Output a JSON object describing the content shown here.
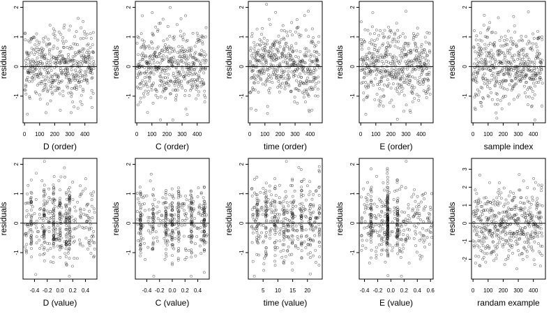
{
  "chart_data": [
    {
      "type": "scatter",
      "xlabel": "D (order)",
      "ylabel": "residuals",
      "xlim": [
        -10,
        480
      ],
      "ylim": [
        -1.9,
        2.2
      ],
      "xticks": [
        0,
        100,
        200,
        300,
        400
      ],
      "xtick_labels": [
        "0",
        "100",
        "200",
        "300",
        "400"
      ],
      "yticks": [
        -1,
        0,
        1,
        2
      ],
      "ytick_labels": [
        "-1",
        "0",
        "1",
        "2"
      ],
      "hline": 0,
      "points": {
        "n": 460,
        "x_mode": "index",
        "x_min": 1,
        "x_max": 460,
        "y_mean": 0.05,
        "y_sd": 0.62,
        "y_clip": [
          -1.8,
          2.1
        ]
      }
    },
    {
      "type": "scatter",
      "xlabel": "C (order)",
      "ylabel": "residuals",
      "xlim": [
        -10,
        480
      ],
      "ylim": [
        -1.9,
        2.2
      ],
      "xticks": [
        0,
        100,
        200,
        300,
        400
      ],
      "xtick_labels": [
        "0",
        "100",
        "200",
        "300",
        "400"
      ],
      "yticks": [
        -1,
        0,
        1,
        2
      ],
      "ytick_labels": [
        "-1",
        "0",
        "1",
        "2"
      ],
      "hline": 0,
      "points": {
        "n": 460,
        "x_mode": "index",
        "x_min": 1,
        "x_max": 460,
        "y_mean": 0.05,
        "y_sd": 0.62,
        "y_clip": [
          -1.8,
          2.1
        ]
      }
    },
    {
      "type": "scatter",
      "xlabel": "time (order)",
      "ylabel": "residuals",
      "xlim": [
        -10,
        480
      ],
      "ylim": [
        -1.9,
        2.2
      ],
      "xticks": [
        0,
        100,
        200,
        300,
        400
      ],
      "xtick_labels": [
        "0",
        "100",
        "200",
        "300",
        "400"
      ],
      "yticks": [
        -1,
        0,
        1,
        2
      ],
      "ytick_labels": [
        "-1",
        "0",
        "1",
        "2"
      ],
      "hline": 0,
      "points": {
        "n": 460,
        "x_mode": "index",
        "x_min": 1,
        "x_max": 460,
        "y_mean": 0.05,
        "y_sd": 0.62,
        "y_clip": [
          -1.8,
          2.1
        ]
      }
    },
    {
      "type": "scatter",
      "xlabel": "E (order)",
      "ylabel": "residuals",
      "xlim": [
        -10,
        480
      ],
      "ylim": [
        -1.9,
        2.2
      ],
      "xticks": [
        0,
        100,
        200,
        300,
        400
      ],
      "xtick_labels": [
        "0",
        "100",
        "200",
        "300",
        "400"
      ],
      "yticks": [
        -1,
        0,
        1,
        2
      ],
      "ytick_labels": [
        "-1",
        "0",
        "1",
        "2"
      ],
      "hline": 0,
      "points": {
        "n": 460,
        "x_mode": "index",
        "x_min": 1,
        "x_max": 460,
        "y_mean": 0.05,
        "y_sd": 0.62,
        "y_clip": [
          -1.8,
          2.1
        ]
      }
    },
    {
      "type": "scatter",
      "xlabel": "sample index",
      "ylabel": "residuals",
      "xlim": [
        -10,
        480
      ],
      "ylim": [
        -1.9,
        2.2
      ],
      "xticks": [
        0,
        100,
        200,
        300,
        400
      ],
      "xtick_labels": [
        "0",
        "100",
        "200",
        "300",
        "400"
      ],
      "yticks": [
        -1,
        0,
        1,
        2
      ],
      "ytick_labels": [
        "-1",
        "0",
        "1",
        "2"
      ],
      "hline": 0,
      "points": {
        "n": 460,
        "x_mode": "index",
        "x_min": 1,
        "x_max": 460,
        "y_mean": 0.05,
        "y_sd": 0.62,
        "y_clip": [
          -1.8,
          2.1
        ]
      }
    },
    {
      "type": "scatter",
      "xlabel": "D (value)",
      "ylabel": "residuals",
      "xlim": [
        -0.58,
        0.58
      ],
      "ylim": [
        -1.9,
        2.2
      ],
      "xticks": [
        -0.4,
        -0.2,
        0.0,
        0.2,
        0.4
      ],
      "xtick_labels": [
        "-0.4",
        "-0.2",
        "0.0",
        "0.2",
        "0.4"
      ],
      "yticks": [
        -1,
        0,
        1,
        2
      ],
      "ytick_labels": [
        "-1",
        "0",
        "1",
        "2"
      ],
      "hline": 0,
      "points": {
        "n": 460,
        "x_mode": "mixed",
        "x_min": -0.55,
        "x_max": 0.55,
        "clusters": [
          -0.45,
          -0.25,
          -0.1,
          0,
          0.1,
          0.15
        ],
        "cluster_share": 0.45,
        "y_mean": 0.05,
        "y_sd": 0.62,
        "y_clip": [
          -1.8,
          2.1
        ]
      }
    },
    {
      "type": "scatter",
      "xlabel": "C (value)",
      "ylabel": "residuals",
      "xlim": [
        -0.58,
        0.58
      ],
      "ylim": [
        -1.9,
        2.2
      ],
      "xticks": [
        -0.4,
        -0.2,
        0.0,
        0.2,
        0.4
      ],
      "xtick_labels": [
        "-0.4",
        "-0.2",
        "0.0",
        "0.2",
        "0.4"
      ],
      "yticks": [
        -1,
        0,
        1,
        2
      ],
      "ytick_labels": [
        "-1",
        "0",
        "1",
        "2"
      ],
      "hline": 0,
      "points": {
        "n": 460,
        "x_mode": "mixed",
        "x_min": -0.55,
        "x_max": 0.55,
        "clusters": [
          -0.5,
          -0.3,
          -0.1,
          0,
          0.1,
          0.3,
          0.5
        ],
        "cluster_share": 0.6,
        "y_mean": 0.05,
        "y_sd": 0.62,
        "y_clip": [
          -1.8,
          2.1
        ]
      }
    },
    {
      "type": "scatter",
      "xlabel": "time (value)",
      "ylabel": "residuals",
      "xlim": [
        0,
        25
      ],
      "ylim": [
        -1.9,
        2.2
      ],
      "xticks": [
        5,
        10,
        15,
        20
      ],
      "xtick_labels": [
        "5",
        "10",
        "15",
        "20"
      ],
      "yticks": [
        -1,
        0,
        1,
        2
      ],
      "ytick_labels": [
        "-1",
        "0",
        "1",
        "2"
      ],
      "hline": 0,
      "points": {
        "n": 460,
        "x_mode": "mixed",
        "x_min": 1,
        "x_max": 24,
        "clusters": [
          3,
          6,
          9,
          12,
          15,
          18,
          21,
          24
        ],
        "cluster_share": 0.45,
        "y_mean": 0.05,
        "y_sd": 0.62,
        "y_clip": [
          -1.8,
          2.1
        ]
      }
    },
    {
      "type": "scatter",
      "xlabel": "E (value)",
      "ylabel": "residuals",
      "xlim": [
        -0.48,
        0.64
      ],
      "ylim": [
        -1.9,
        2.2
      ],
      "xticks": [
        -0.4,
        -0.2,
        0.0,
        0.2,
        0.4,
        0.6
      ],
      "xtick_labels": [
        "-0.4",
        "-0.2",
        "0.0",
        "0.2",
        "0.4",
        "0.6"
      ],
      "yticks": [
        -1,
        0,
        1,
        2
      ],
      "ytick_labels": [
        "-1",
        "0",
        "1",
        "2"
      ],
      "hline": 0,
      "points": {
        "n": 460,
        "x_mode": "mixed",
        "x_min": -0.45,
        "x_max": 0.62,
        "clusters": [
          -0.05,
          -0.05,
          -0.05,
          -0.3,
          0.1
        ],
        "cluster_share": 0.4,
        "y_mean": 0.05,
        "y_sd": 0.62,
        "y_clip": [
          -1.8,
          2.1
        ]
      }
    },
    {
      "type": "scatter",
      "xlabel": "randam example",
      "ylabel": "residuals",
      "xlim": [
        -10,
        480
      ],
      "ylim": [
        -3.1,
        3.6
      ],
      "xticks": [
        0,
        100,
        200,
        300,
        400
      ],
      "xtick_labels": [
        "0",
        "100",
        "200",
        "300",
        "400"
      ],
      "yticks": [
        -2,
        -1,
        0,
        1,
        2,
        3
      ],
      "ytick_labels": [
        "-2",
        "-1",
        "0",
        "1",
        "2",
        "3"
      ],
      "hline": 0,
      "points": {
        "n": 460,
        "x_mode": "index",
        "x_min": 1,
        "x_max": 460,
        "y_mean": 0,
        "y_sd": 1.0,
        "y_clip": [
          -2.6,
          3.3
        ]
      }
    }
  ]
}
